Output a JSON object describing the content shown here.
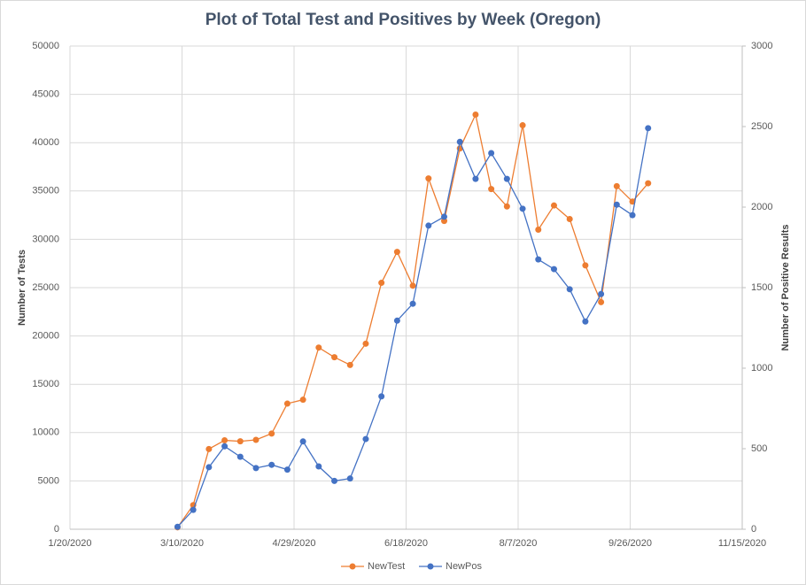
{
  "chart_data": {
    "type": "line",
    "title": "Plot of Total Test and Positives by Week (Oregon)",
    "y_label": "Number of Tests",
    "y2_label": "Number of Positive Results",
    "x": [
      "3/8/2020",
      "3/15/2020",
      "3/22/2020",
      "3/29/2020",
      "4/5/2020",
      "4/12/2020",
      "4/19/2020",
      "4/26/2020",
      "5/3/2020",
      "5/10/2020",
      "5/17/2020",
      "5/24/2020",
      "5/31/2020",
      "6/7/2020",
      "6/14/2020",
      "6/21/2020",
      "6/28/2020",
      "7/5/2020",
      "7/12/2020",
      "7/19/2020",
      "7/26/2020",
      "8/2/2020",
      "8/9/2020",
      "8/16/2020",
      "8/23/2020",
      "8/30/2020",
      "9/6/2020",
      "9/13/2020",
      "9/20/2020",
      "9/27/2020",
      "10/4/2020"
    ],
    "xlim": [
      "1/20/2020",
      "11/15/2020"
    ],
    "xticks": [
      "1/20/2020",
      "3/10/2020",
      "4/29/2020",
      "6/18/2020",
      "8/7/2020",
      "9/26/2020",
      "11/15/2020"
    ],
    "ylim": [
      0,
      50000
    ],
    "yticks": [
      0,
      5000,
      10000,
      15000,
      20000,
      25000,
      30000,
      35000,
      40000,
      45000,
      50000
    ],
    "y2lim": [
      0,
      3000
    ],
    "y2ticks": [
      0,
      500,
      1000,
      1500,
      2000,
      2500,
      3000
    ],
    "grid": true,
    "legend": "bottom",
    "series": [
      {
        "name": "NewTest",
        "color": "#ed7d31",
        "values": [
          200,
          2500,
          8300,
          9200,
          9100,
          9250,
          9900,
          13000,
          13400,
          18800,
          17800,
          17000,
          19200,
          25500,
          28700,
          25200,
          36300,
          31900,
          39400,
          42900,
          35200,
          33400,
          41800,
          31000,
          33500,
          32100,
          27300,
          23500,
          35500,
          33900,
          35800
        ]
      },
      {
        "name": "NewPos",
        "color": "#4472c4",
        "axis": "y2",
        "values": [
          15,
          120,
          385,
          515,
          450,
          380,
          400,
          370,
          545,
          390,
          300,
          315,
          560,
          825,
          1295,
          1400,
          1885,
          1940,
          2405,
          2175,
          2335,
          2175,
          1990,
          1675,
          1615,
          1490,
          1290,
          1460,
          2015,
          1950,
          2490
        ]
      }
    ]
  }
}
